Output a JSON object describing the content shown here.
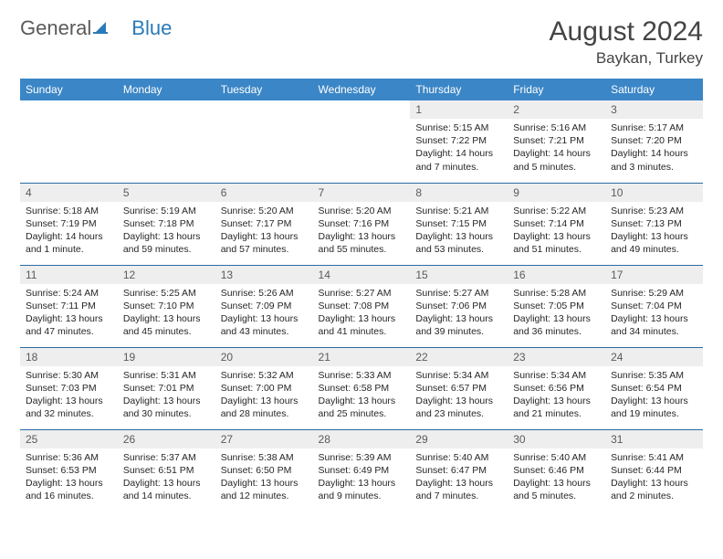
{
  "logo": {
    "part1": "General",
    "part2": "Blue"
  },
  "title": "August 2024",
  "location": "Baykan, Turkey",
  "weekdays": [
    "Sunday",
    "Monday",
    "Tuesday",
    "Wednesday",
    "Thursday",
    "Friday",
    "Saturday"
  ],
  "colors": {
    "header_bg": "#3b86c6",
    "header_text": "#ffffff",
    "daynum_bg": "#eeeeee",
    "border": "#2a6aa3",
    "logo_gray": "#5a5a5a",
    "logo_blue": "#2a7ab9"
  },
  "weeks": [
    [
      {
        "num": "",
        "sunrise": "",
        "sunset": "",
        "daylight": ""
      },
      {
        "num": "",
        "sunrise": "",
        "sunset": "",
        "daylight": ""
      },
      {
        "num": "",
        "sunrise": "",
        "sunset": "",
        "daylight": ""
      },
      {
        "num": "",
        "sunrise": "",
        "sunset": "",
        "daylight": ""
      },
      {
        "num": "1",
        "sunrise": "Sunrise: 5:15 AM",
        "sunset": "Sunset: 7:22 PM",
        "daylight": "Daylight: 14 hours and 7 minutes."
      },
      {
        "num": "2",
        "sunrise": "Sunrise: 5:16 AM",
        "sunset": "Sunset: 7:21 PM",
        "daylight": "Daylight: 14 hours and 5 minutes."
      },
      {
        "num": "3",
        "sunrise": "Sunrise: 5:17 AM",
        "sunset": "Sunset: 7:20 PM",
        "daylight": "Daylight: 14 hours and 3 minutes."
      }
    ],
    [
      {
        "num": "4",
        "sunrise": "Sunrise: 5:18 AM",
        "sunset": "Sunset: 7:19 PM",
        "daylight": "Daylight: 14 hours and 1 minute."
      },
      {
        "num": "5",
        "sunrise": "Sunrise: 5:19 AM",
        "sunset": "Sunset: 7:18 PM",
        "daylight": "Daylight: 13 hours and 59 minutes."
      },
      {
        "num": "6",
        "sunrise": "Sunrise: 5:20 AM",
        "sunset": "Sunset: 7:17 PM",
        "daylight": "Daylight: 13 hours and 57 minutes."
      },
      {
        "num": "7",
        "sunrise": "Sunrise: 5:20 AM",
        "sunset": "Sunset: 7:16 PM",
        "daylight": "Daylight: 13 hours and 55 minutes."
      },
      {
        "num": "8",
        "sunrise": "Sunrise: 5:21 AM",
        "sunset": "Sunset: 7:15 PM",
        "daylight": "Daylight: 13 hours and 53 minutes."
      },
      {
        "num": "9",
        "sunrise": "Sunrise: 5:22 AM",
        "sunset": "Sunset: 7:14 PM",
        "daylight": "Daylight: 13 hours and 51 minutes."
      },
      {
        "num": "10",
        "sunrise": "Sunrise: 5:23 AM",
        "sunset": "Sunset: 7:13 PM",
        "daylight": "Daylight: 13 hours and 49 minutes."
      }
    ],
    [
      {
        "num": "11",
        "sunrise": "Sunrise: 5:24 AM",
        "sunset": "Sunset: 7:11 PM",
        "daylight": "Daylight: 13 hours and 47 minutes."
      },
      {
        "num": "12",
        "sunrise": "Sunrise: 5:25 AM",
        "sunset": "Sunset: 7:10 PM",
        "daylight": "Daylight: 13 hours and 45 minutes."
      },
      {
        "num": "13",
        "sunrise": "Sunrise: 5:26 AM",
        "sunset": "Sunset: 7:09 PM",
        "daylight": "Daylight: 13 hours and 43 minutes."
      },
      {
        "num": "14",
        "sunrise": "Sunrise: 5:27 AM",
        "sunset": "Sunset: 7:08 PM",
        "daylight": "Daylight: 13 hours and 41 minutes."
      },
      {
        "num": "15",
        "sunrise": "Sunrise: 5:27 AM",
        "sunset": "Sunset: 7:06 PM",
        "daylight": "Daylight: 13 hours and 39 minutes."
      },
      {
        "num": "16",
        "sunrise": "Sunrise: 5:28 AM",
        "sunset": "Sunset: 7:05 PM",
        "daylight": "Daylight: 13 hours and 36 minutes."
      },
      {
        "num": "17",
        "sunrise": "Sunrise: 5:29 AM",
        "sunset": "Sunset: 7:04 PM",
        "daylight": "Daylight: 13 hours and 34 minutes."
      }
    ],
    [
      {
        "num": "18",
        "sunrise": "Sunrise: 5:30 AM",
        "sunset": "Sunset: 7:03 PM",
        "daylight": "Daylight: 13 hours and 32 minutes."
      },
      {
        "num": "19",
        "sunrise": "Sunrise: 5:31 AM",
        "sunset": "Sunset: 7:01 PM",
        "daylight": "Daylight: 13 hours and 30 minutes."
      },
      {
        "num": "20",
        "sunrise": "Sunrise: 5:32 AM",
        "sunset": "Sunset: 7:00 PM",
        "daylight": "Daylight: 13 hours and 28 minutes."
      },
      {
        "num": "21",
        "sunrise": "Sunrise: 5:33 AM",
        "sunset": "Sunset: 6:58 PM",
        "daylight": "Daylight: 13 hours and 25 minutes."
      },
      {
        "num": "22",
        "sunrise": "Sunrise: 5:34 AM",
        "sunset": "Sunset: 6:57 PM",
        "daylight": "Daylight: 13 hours and 23 minutes."
      },
      {
        "num": "23",
        "sunrise": "Sunrise: 5:34 AM",
        "sunset": "Sunset: 6:56 PM",
        "daylight": "Daylight: 13 hours and 21 minutes."
      },
      {
        "num": "24",
        "sunrise": "Sunrise: 5:35 AM",
        "sunset": "Sunset: 6:54 PM",
        "daylight": "Daylight: 13 hours and 19 minutes."
      }
    ],
    [
      {
        "num": "25",
        "sunrise": "Sunrise: 5:36 AM",
        "sunset": "Sunset: 6:53 PM",
        "daylight": "Daylight: 13 hours and 16 minutes."
      },
      {
        "num": "26",
        "sunrise": "Sunrise: 5:37 AM",
        "sunset": "Sunset: 6:51 PM",
        "daylight": "Daylight: 13 hours and 14 minutes."
      },
      {
        "num": "27",
        "sunrise": "Sunrise: 5:38 AM",
        "sunset": "Sunset: 6:50 PM",
        "daylight": "Daylight: 13 hours and 12 minutes."
      },
      {
        "num": "28",
        "sunrise": "Sunrise: 5:39 AM",
        "sunset": "Sunset: 6:49 PM",
        "daylight": "Daylight: 13 hours and 9 minutes."
      },
      {
        "num": "29",
        "sunrise": "Sunrise: 5:40 AM",
        "sunset": "Sunset: 6:47 PM",
        "daylight": "Daylight: 13 hours and 7 minutes."
      },
      {
        "num": "30",
        "sunrise": "Sunrise: 5:40 AM",
        "sunset": "Sunset: 6:46 PM",
        "daylight": "Daylight: 13 hours and 5 minutes."
      },
      {
        "num": "31",
        "sunrise": "Sunrise: 5:41 AM",
        "sunset": "Sunset: 6:44 PM",
        "daylight": "Daylight: 13 hours and 2 minutes."
      }
    ]
  ]
}
